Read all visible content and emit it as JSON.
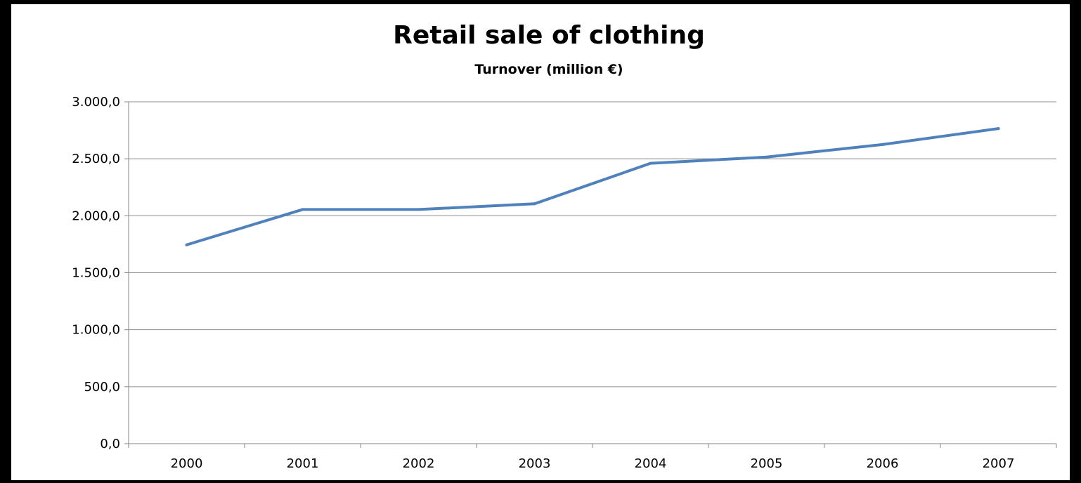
{
  "chart_data": {
    "type": "line",
    "title": "Retail sale of clothing",
    "subtitle": "Turnover (million €)",
    "xlabel": "",
    "ylabel": "",
    "categories": [
      "2000",
      "2001",
      "2002",
      "2003",
      "2004",
      "2005",
      "2006",
      "2007"
    ],
    "series": [
      {
        "values": [
          1745,
          2055,
          2055,
          2105,
          2460,
          2515,
          2625,
          2765
        ],
        "color": "#4f81bd"
      }
    ],
    "ylim": [
      0,
      3000
    ],
    "yticks": [
      0,
      500,
      1000,
      1500,
      2000,
      2500,
      3000
    ],
    "ytick_labels": [
      "0,0",
      "500,0",
      "1.000,0",
      "1.500,0",
      "2.000,0",
      "2.500,0",
      "3.000,0"
    ],
    "grid": true,
    "legend": "none"
  }
}
